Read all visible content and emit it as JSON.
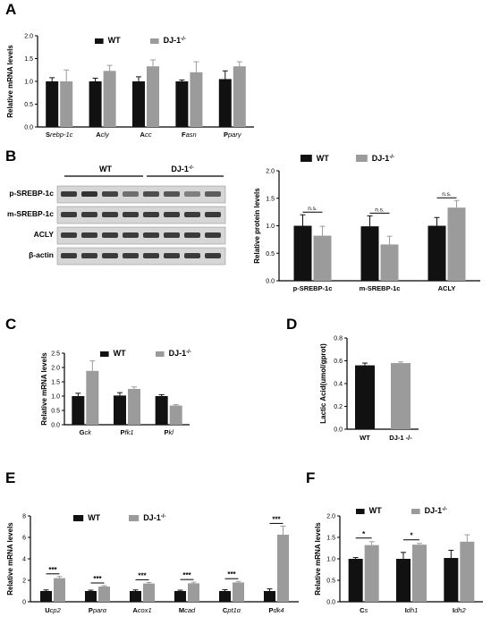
{
  "colors": {
    "wt": "#111111",
    "ko": "#9b9b9b",
    "axis": "#000000",
    "blot_bg": "#d6d6d6",
    "band": "#2a2a2a"
  },
  "legend": {
    "wt": "WT",
    "ko_base": "DJ-1",
    "ko_sup": "-/-"
  },
  "chart_data": [
    {
      "id": "A",
      "letter": "A",
      "type": "bar",
      "ylabel": "Relative mRNA levels",
      "ylim": [
        0,
        2.0
      ],
      "yticks": [
        "0.0",
        "0.5",
        "1.0",
        "1.5",
        "2.0"
      ],
      "categories": [
        {
          "initial": "S",
          "rest": "rebp-1c"
        },
        {
          "initial": "A",
          "rest": "cly"
        },
        {
          "initial": "A",
          "rest": "cc"
        },
        {
          "initial": "F",
          "rest": "asn"
        },
        {
          "initial": "P",
          "rest": "parγ"
        }
      ],
      "series": [
        {
          "name": "WT",
          "values": [
            1.0,
            1.0,
            1.0,
            1.0,
            1.05
          ],
          "errors": [
            0.08,
            0.07,
            0.1,
            0.03,
            0.18
          ]
        },
        {
          "name": "DJ-1-/-",
          "values": [
            1.0,
            1.23,
            1.33,
            1.2,
            1.33
          ],
          "errors": [
            0.25,
            0.12,
            0.14,
            0.23,
            0.1
          ]
        }
      ],
      "significance": []
    },
    {
      "id": "B",
      "letter": "B",
      "type": "bar",
      "ylabel": "Relative protein levels",
      "ylim": [
        0,
        2.0
      ],
      "yticks": [
        "0.0",
        "0.5",
        "1.0",
        "1.5",
        "2.0"
      ],
      "categories": [
        {
          "initial": "",
          "rest": "p-SREBP-1c"
        },
        {
          "initial": "",
          "rest": "m-SREBP-1c"
        },
        {
          "initial": "",
          "rest": "ACLY"
        }
      ],
      "series": [
        {
          "name": "WT",
          "values": [
            1.0,
            0.99,
            1.0
          ],
          "errors": [
            0.2,
            0.19,
            0.15
          ]
        },
        {
          "name": "DJ-1-/-",
          "values": [
            0.82,
            0.66,
            1.33
          ],
          "errors": [
            0.17,
            0.15,
            0.13
          ]
        }
      ],
      "significance": [
        "n.s.",
        "n.s.",
        "n.s."
      ]
    },
    {
      "id": "C",
      "letter": "C",
      "type": "bar",
      "ylabel": "Relative mRNA levels",
      "ylim": [
        0,
        2.5
      ],
      "yticks": [
        "0.0",
        "0.5",
        "1.0",
        "1.5",
        "2.0",
        "2.5"
      ],
      "categories": [
        {
          "initial": "G",
          "rest": "ck"
        },
        {
          "initial": "P",
          "rest": "fk1"
        },
        {
          "initial": "P",
          "rest": "kl"
        }
      ],
      "series": [
        {
          "name": "WT",
          "values": [
            1.0,
            1.02,
            1.0
          ],
          "errors": [
            0.1,
            0.1,
            0.05
          ]
        },
        {
          "name": "DJ-1-/-",
          "values": [
            1.88,
            1.25,
            0.67
          ],
          "errors": [
            0.35,
            0.07,
            0.03
          ]
        }
      ],
      "significance": []
    },
    {
      "id": "D",
      "letter": "D",
      "type": "bar",
      "ylabel": "Lactic Acid(umol/gprot)",
      "ylim": [
        0,
        0.8
      ],
      "yticks": [
        "0.0",
        "0.2",
        "0.4",
        "0.6",
        "0.8"
      ],
      "categories": [
        {
          "initial": "",
          "rest": "WT"
        },
        {
          "initial": "",
          "rest": "DJ-1 -/-"
        }
      ],
      "values": [
        0.56,
        0.58
      ],
      "errors": [
        0.02,
        0.01
      ],
      "significance": []
    },
    {
      "id": "E",
      "letter": "E",
      "type": "bar",
      "ylabel": "Relative mRNA levels",
      "ylim": [
        0,
        8
      ],
      "yticks": [
        "0",
        "2",
        "4",
        "6",
        "8"
      ],
      "categories": [
        {
          "initial": "U",
          "rest": "cp2"
        },
        {
          "initial": "P",
          "rest": "parα"
        },
        {
          "initial": "A",
          "rest": "cox1"
        },
        {
          "initial": "M",
          "rest": "cad"
        },
        {
          "initial": "C",
          "rest": "pt1α"
        },
        {
          "initial": "P",
          "rest": "dk4"
        }
      ],
      "series": [
        {
          "name": "WT",
          "values": [
            1.0,
            1.0,
            1.0,
            1.0,
            1.0,
            1.0
          ],
          "errors": [
            0.1,
            0.08,
            0.1,
            0.08,
            0.12,
            0.2
          ]
        },
        {
          "name": "DJ-1-/-",
          "values": [
            2.2,
            1.42,
            1.7,
            1.72,
            1.8,
            6.25
          ],
          "errors": [
            0.15,
            0.08,
            0.1,
            0.1,
            0.1,
            0.8
          ]
        }
      ],
      "significance": [
        "***",
        "***",
        "***",
        "***",
        "***",
        "***"
      ]
    },
    {
      "id": "F",
      "letter": "F",
      "type": "bar",
      "ylabel": "Relative mRNA levels",
      "ylim": [
        0,
        2.0
      ],
      "yticks": [
        "0.0",
        "0.5",
        "1.0",
        "1.5",
        "2.0"
      ],
      "categories": [
        {
          "initial": "C",
          "rest": "s"
        },
        {
          "initial": "I",
          "rest": "dh1"
        },
        {
          "initial": "I",
          "rest": "dh2"
        }
      ],
      "series": [
        {
          "name": "WT",
          "values": [
            1.0,
            1.0,
            1.02
          ],
          "errors": [
            0.03,
            0.15,
            0.18
          ]
        },
        {
          "name": "DJ-1-/-",
          "values": [
            1.32,
            1.33,
            1.4
          ],
          "errors": [
            0.08,
            0.03,
            0.16
          ]
        }
      ],
      "significance": [
        "*",
        "*",
        ""
      ]
    }
  ],
  "western_blot": {
    "group_wt": "WT",
    "group_ko_base": "DJ-1",
    "group_ko_sup": "-/-",
    "rows": [
      "p-SREBP-1c",
      "m-SREBP-1c",
      "ACLY",
      "β-actin"
    ]
  }
}
